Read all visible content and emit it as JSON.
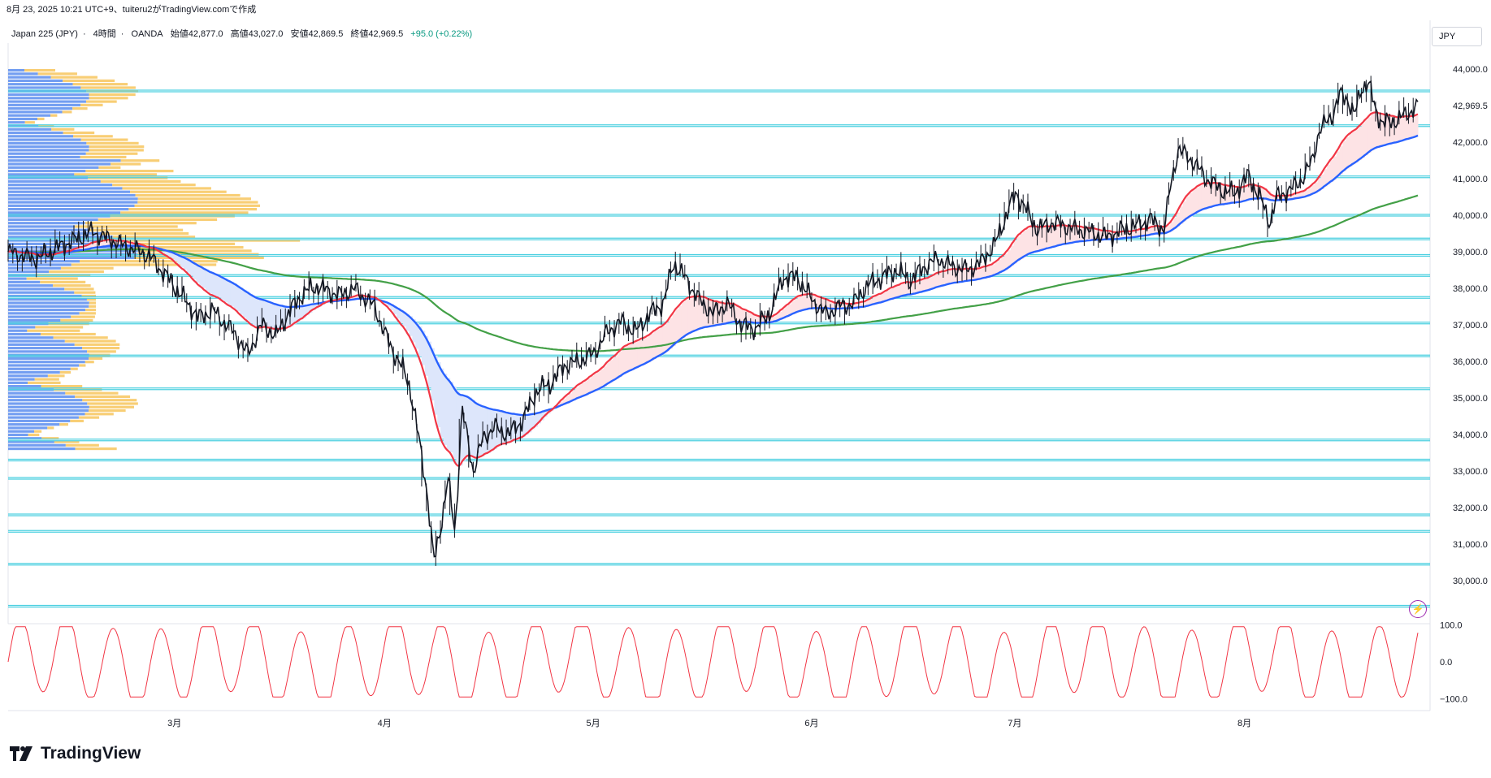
{
  "header": {
    "caption": "8月 23, 2025 10:21 UTC+9、tuiteru2がTradingView.comで作成"
  },
  "legend": {
    "symbol": "Japan 225 (JPY)",
    "interval": "4時間",
    "source": "OANDA",
    "open": "始値42,877.0",
    "high": "高値43,027.0",
    "low": "安値42,869.5",
    "close": "終値42,969.5",
    "change": "+95.0 (+0.22%)"
  },
  "currency": "JPY",
  "last_price_label": "42,969.5",
  "brand": {
    "name": "TradingView",
    "logo_icon": "tradingview-logo-icon"
  },
  "colors": {
    "candle": "#131722",
    "ema_fast": "#f23645",
    "ema_mid": "#2962ff",
    "ema_slow": "#43a047",
    "hline": "#4dd0e1",
    "hline_dark": "#26a69a",
    "vp_up": "#5b8def",
    "vp_down": "#f7c65d",
    "oscillator": "#f23645",
    "fill_up": "#fde3e5",
    "fill_down": "#dde6fb"
  },
  "chart_data": [
    {
      "type": "line",
      "title": "Japan 225 (JPY) 4時間",
      "x_ticks": [
        "3月",
        "4月",
        "5月",
        "6月",
        "7月",
        "8月"
      ],
      "y_ticks": [
        "30,000.0",
        "31,000.0",
        "32,000.0",
        "33,000.0",
        "34,000.0",
        "35,000.0",
        "36,000.0",
        "37,000.0",
        "38,000.0",
        "39,000.0",
        "40,000.0",
        "41,000.0",
        "42,000.0",
        "44,000.0"
      ],
      "ylim": [
        29000,
        44600
      ],
      "horizontal_levels": [
        43400,
        42450,
        41050,
        40000,
        39350,
        38900,
        38350,
        37750,
        37050,
        36150,
        35250,
        33850,
        33300,
        32800,
        31800,
        31350,
        30450,
        29300
      ],
      "price_path_points": [
        [
          0.0,
          39000
        ],
        [
          0.02,
          38800
        ],
        [
          0.04,
          39200
        ],
        [
          0.06,
          39550
        ],
        [
          0.08,
          39200
        ],
        [
          0.1,
          38900
        ],
        [
          0.115,
          38200
        ],
        [
          0.125,
          37700
        ],
        [
          0.135,
          37200
        ],
        [
          0.145,
          37400
        ],
        [
          0.16,
          36800
        ],
        [
          0.17,
          36200
        ],
        [
          0.18,
          37000
        ],
        [
          0.19,
          36700
        ],
        [
          0.2,
          37400
        ],
        [
          0.21,
          37900
        ],
        [
          0.22,
          38050
        ],
        [
          0.235,
          37800
        ],
        [
          0.245,
          38000
        ],
        [
          0.26,
          37500
        ],
        [
          0.27,
          36500
        ],
        [
          0.28,
          35800
        ],
        [
          0.285,
          35300
        ],
        [
          0.29,
          34200
        ],
        [
          0.297,
          32500
        ],
        [
          0.302,
          30500
        ],
        [
          0.307,
          31500
        ],
        [
          0.312,
          32800
        ],
        [
          0.317,
          31300
        ],
        [
          0.322,
          34700
        ],
        [
          0.33,
          33000
        ],
        [
          0.337,
          33900
        ],
        [
          0.345,
          34200
        ],
        [
          0.355,
          34000
        ],
        [
          0.365,
          34400
        ],
        [
          0.375,
          35200
        ],
        [
          0.385,
          35400
        ],
        [
          0.395,
          35900
        ],
        [
          0.405,
          36000
        ],
        [
          0.415,
          36200
        ],
        [
          0.425,
          36800
        ],
        [
          0.435,
          37100
        ],
        [
          0.445,
          36800
        ],
        [
          0.455,
          37300
        ],
        [
          0.465,
          37600
        ],
        [
          0.472,
          38700
        ],
        [
          0.48,
          38300
        ],
        [
          0.49,
          37700
        ],
        [
          0.5,
          37300
        ],
        [
          0.51,
          37600
        ],
        [
          0.52,
          37000
        ],
        [
          0.53,
          36900
        ],
        [
          0.54,
          37300
        ],
        [
          0.55,
          38300
        ],
        [
          0.56,
          38300
        ],
        [
          0.57,
          37700
        ],
        [
          0.58,
          37300
        ],
        [
          0.59,
          37500
        ],
        [
          0.6,
          37600
        ],
        [
          0.61,
          38100
        ],
        [
          0.62,
          38300
        ],
        [
          0.63,
          38500
        ],
        [
          0.64,
          38200
        ],
        [
          0.65,
          38600
        ],
        [
          0.66,
          38800
        ],
        [
          0.67,
          38600
        ],
        [
          0.68,
          38500
        ],
        [
          0.69,
          38700
        ],
        [
          0.7,
          39200
        ],
        [
          0.71,
          40200
        ],
        [
          0.715,
          40600
        ],
        [
          0.72,
          40300
        ],
        [
          0.73,
          39600
        ],
        [
          0.74,
          39800
        ],
        [
          0.75,
          39700
        ],
        [
          0.76,
          39600
        ],
        [
          0.77,
          39500
        ],
        [
          0.78,
          39400
        ],
        [
          0.79,
          39600
        ],
        [
          0.8,
          39700
        ],
        [
          0.81,
          39900
        ],
        [
          0.82,
          39600
        ],
        [
          0.825,
          40900
        ],
        [
          0.83,
          41800
        ],
        [
          0.84,
          41500
        ],
        [
          0.85,
          41000
        ],
        [
          0.86,
          40700
        ],
        [
          0.87,
          40600
        ],
        [
          0.88,
          41100
        ],
        [
          0.89,
          40300
        ],
        [
          0.895,
          39800
        ],
        [
          0.9,
          40500
        ],
        [
          0.91,
          40700
        ],
        [
          0.92,
          41100
        ],
        [
          0.925,
          41500
        ],
        [
          0.93,
          42300
        ],
        [
          0.94,
          42800
        ],
        [
          0.945,
          43300
        ],
        [
          0.95,
          43200
        ],
        [
          0.955,
          42700
        ],
        [
          0.96,
          43500
        ],
        [
          0.965,
          43600
        ],
        [
          0.97,
          42900
        ],
        [
          0.975,
          42500
        ],
        [
          0.985,
          42600
        ],
        [
          1.0,
          42970
        ]
      ]
    },
    {
      "type": "line",
      "title": "Oscillator",
      "y_ticks": [
        "100.0",
        "0.0",
        "−100.0"
      ],
      "ylim": [
        -110,
        110
      ]
    }
  ]
}
